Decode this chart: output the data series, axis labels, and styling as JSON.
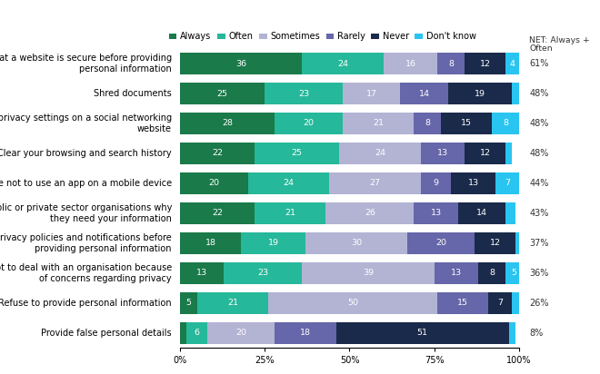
{
  "categories": [
    "Check that a website is secure before providing\npersonal information",
    "Shred documents",
    "Adjust privacy settings on a social networking\nwebsite",
    "Clear your browsing and search history",
    "Choose not to use an app on a mobile device",
    "Ask public or private sector organisations why\nthey need your information",
    "Read privacy policies and notifications before\nproviding personal information",
    "Choose not to deal with an organisation because\nof concerns regarding privacy",
    "Refuse to provide personal information",
    "Provide false personal details"
  ],
  "series": {
    "Always": [
      36,
      25,
      28,
      22,
      20,
      22,
      18,
      13,
      5,
      2
    ],
    "Often": [
      24,
      23,
      20,
      25,
      24,
      21,
      19,
      23,
      21,
      6
    ],
    "Sometimes": [
      16,
      17,
      21,
      24,
      27,
      26,
      30,
      39,
      50,
      20
    ],
    "Rarely": [
      8,
      14,
      8,
      13,
      9,
      13,
      20,
      13,
      15,
      18
    ],
    "Never": [
      12,
      19,
      15,
      12,
      13,
      14,
      12,
      8,
      7,
      51
    ],
    "Don't know": [
      4,
      2,
      8,
      2,
      7,
      3,
      2,
      5,
      2,
      2
    ]
  },
  "net_labels": [
    "61%",
    "48%",
    "48%",
    "48%",
    "44%",
    "43%",
    "37%",
    "36%",
    "26%",
    "8%"
  ],
  "colors": {
    "Always": "#1a7a4a",
    "Often": "#26b89a",
    "Sometimes": "#b3b3d4",
    "Rarely": "#6666aa",
    "Never": "#1a2a4a",
    "Don't know": "#29c5f0"
  },
  "legend_order": [
    "Always",
    "Often",
    "Sometimes",
    "Rarely",
    "Never",
    "Don't know"
  ],
  "net_header_line1": "NET: Always +",
  "net_header_line2": "Often",
  "bg_color": "#ffffff",
  "bar_height": 0.72,
  "fontsize": 7.0,
  "label_fontsize": 6.8
}
